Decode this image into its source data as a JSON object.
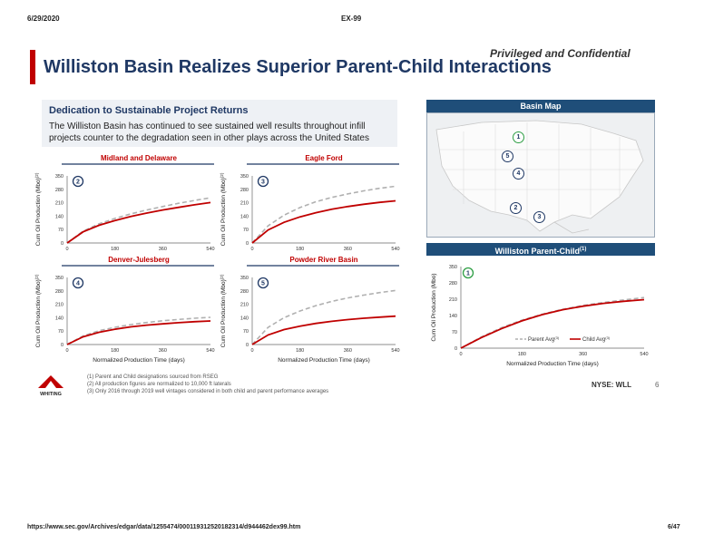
{
  "header": {
    "date": "6/29/2020",
    "doc": "EX-99"
  },
  "footer": {
    "url": "https://www.sec.gov/Archives/edgar/data/1255474/000119312520182314/d944462dex99.htm",
    "page": "6/47"
  },
  "slide": {
    "confidential": "Privileged and Confidential",
    "title": "Williston Basin Realizes Superior Parent-Child Interactions",
    "dedication_title": "Dedication to Sustainable Project Returns",
    "dedication_text": "The Williston Basin has continued to see sustained well results throughout infill projects counter to the degradation seen in other plays across the United States",
    "map_title": "Basin Map",
    "map_markers": [
      "1",
      "5",
      "4",
      "2",
      "3"
    ],
    "notes": [
      "(1)  Parent and Child designations sourced from RSEG",
      "(2)  All production figures are normalized to 10,000 ft laterals",
      "(3)  Only 2016 through 2019 well vintages considered in both child and parent performance averages"
    ],
    "logo_text": "WHITING",
    "ticker": "NYSE: WLL",
    "slide_number": "6"
  },
  "chart_data": [
    {
      "type": "line",
      "title": "Midland and Delaware",
      "marker": "2",
      "xlabel": "",
      "ylabel": "Cum Oil Production (Mbo)",
      "ylabel_sup": "(2)",
      "x_ticks": [
        "0",
        "180",
        "360",
        "540"
      ],
      "y_ticks": [
        "0",
        "70",
        "140",
        "210",
        "280",
        "350"
      ],
      "xlim": [
        0,
        540
      ],
      "ylim": [
        0,
        350
      ],
      "series": [
        {
          "x": [
            0,
            60,
            120,
            180,
            240,
            300,
            360,
            420,
            480,
            540
          ],
          "values": [
            0,
            62,
            100,
            128,
            152,
            172,
            190,
            207,
            222,
            236
          ],
          "color": "#b0b0b0",
          "dash": true
        },
        {
          "x": [
            0,
            60,
            120,
            180,
            240,
            300,
            360,
            420,
            480,
            540
          ],
          "values": [
            0,
            58,
            92,
            117,
            138,
            156,
            172,
            186,
            199,
            211
          ],
          "color": "#c00000",
          "dash": false
        }
      ]
    },
    {
      "type": "line",
      "title": "Eagle Ford",
      "marker": "3",
      "xlabel": "",
      "ylabel": "Cum Oil Production (Mbo)",
      "ylabel_sup": "(2)",
      "x_ticks": [
        "0",
        "180",
        "360",
        "540"
      ],
      "y_ticks": [
        "0",
        "70",
        "140",
        "210",
        "280",
        "350"
      ],
      "xlim": [
        0,
        540
      ],
      "ylim": [
        0,
        350
      ],
      "series": [
        {
          "x": [
            0,
            60,
            120,
            180,
            240,
            300,
            360,
            420,
            480,
            540
          ],
          "values": [
            0,
            90,
            145,
            185,
            215,
            238,
            256,
            272,
            285,
            296
          ],
          "color": "#b0b0b0",
          "dash": true
        },
        {
          "x": [
            0,
            60,
            120,
            180,
            240,
            300,
            360,
            420,
            480,
            540
          ],
          "values": [
            0,
            68,
            108,
            136,
            158,
            176,
            190,
            202,
            212,
            220
          ],
          "color": "#c00000",
          "dash": false
        }
      ]
    },
    {
      "type": "line",
      "title": "Denver-Julesberg",
      "marker": "4",
      "xlabel": "Normalized Production Time (days)",
      "ylabel": "Cum Oil Production (Mbo)",
      "ylabel_sup": "(2)",
      "x_ticks": [
        "0",
        "180",
        "360",
        "540"
      ],
      "y_ticks": [
        "0",
        "70",
        "140",
        "210",
        "280",
        "350"
      ],
      "xlim": [
        0,
        540
      ],
      "ylim": [
        0,
        350
      ],
      "series": [
        {
          "x": [
            0,
            60,
            120,
            180,
            240,
            300,
            360,
            420,
            480,
            540
          ],
          "values": [
            0,
            45,
            72,
            90,
            104,
            115,
            124,
            131,
            137,
            142
          ],
          "color": "#b0b0b0",
          "dash": true
        },
        {
          "x": [
            0,
            60,
            120,
            180,
            240,
            300,
            360,
            420,
            480,
            540
          ],
          "values": [
            0,
            40,
            64,
            80,
            92,
            101,
            108,
            114,
            119,
            123
          ],
          "color": "#c00000",
          "dash": false
        }
      ]
    },
    {
      "type": "line",
      "title": "Powder River Basin",
      "marker": "5",
      "xlabel": "Normalized Production Time (days)",
      "ylabel": "Cum Oil Production (Mbo)",
      "ylabel_sup": "(2)",
      "x_ticks": [
        "0",
        "180",
        "360",
        "540"
      ],
      "y_ticks": [
        "0",
        "70",
        "140",
        "210",
        "280",
        "350"
      ],
      "xlim": [
        0,
        540
      ],
      "ylim": [
        0,
        350
      ],
      "series": [
        {
          "x": [
            0,
            60,
            120,
            180,
            240,
            300,
            360,
            420,
            480,
            540
          ],
          "values": [
            0,
            90,
            140,
            175,
            203,
            225,
            243,
            258,
            271,
            282
          ],
          "color": "#b0b0b0",
          "dash": true
        },
        {
          "x": [
            0,
            60,
            120,
            180,
            240,
            300,
            360,
            420,
            480,
            540
          ],
          "values": [
            0,
            50,
            78,
            96,
            110,
            121,
            130,
            137,
            143,
            148
          ],
          "color": "#c00000",
          "dash": false
        }
      ]
    },
    {
      "type": "line",
      "title": "Williston Parent-Child",
      "title_sup": "(1)",
      "marker": "1",
      "xlabel": "Normalized Production Time (days)",
      "ylabel": "Cum Oil Production (Mbo)",
      "ylabel_sup": "",
      "x_ticks": [
        "0",
        "180",
        "360",
        "540"
      ],
      "y_ticks": [
        "0",
        "70",
        "140",
        "210",
        "280",
        "350"
      ],
      "xlim": [
        0,
        540
      ],
      "ylim": [
        0,
        350
      ],
      "legend": "bottom-right",
      "series": [
        {
          "name": "Parent Avg",
          "name_sup": "(3)",
          "x": [
            0,
            60,
            120,
            180,
            240,
            300,
            360,
            420,
            480,
            540
          ],
          "values": [
            0,
            48,
            88,
            120,
            146,
            167,
            183,
            196,
            207,
            217
          ],
          "color": "#b0b0b0",
          "dash": true
        },
        {
          "name": "Child Avg",
          "name_sup": "(3)",
          "x": [
            0,
            60,
            120,
            180,
            240,
            300,
            360,
            420,
            480,
            540
          ],
          "values": [
            0,
            45,
            84,
            117,
            144,
            165,
            180,
            192,
            201,
            208
          ],
          "color": "#c00000",
          "dash": false
        }
      ]
    }
  ]
}
